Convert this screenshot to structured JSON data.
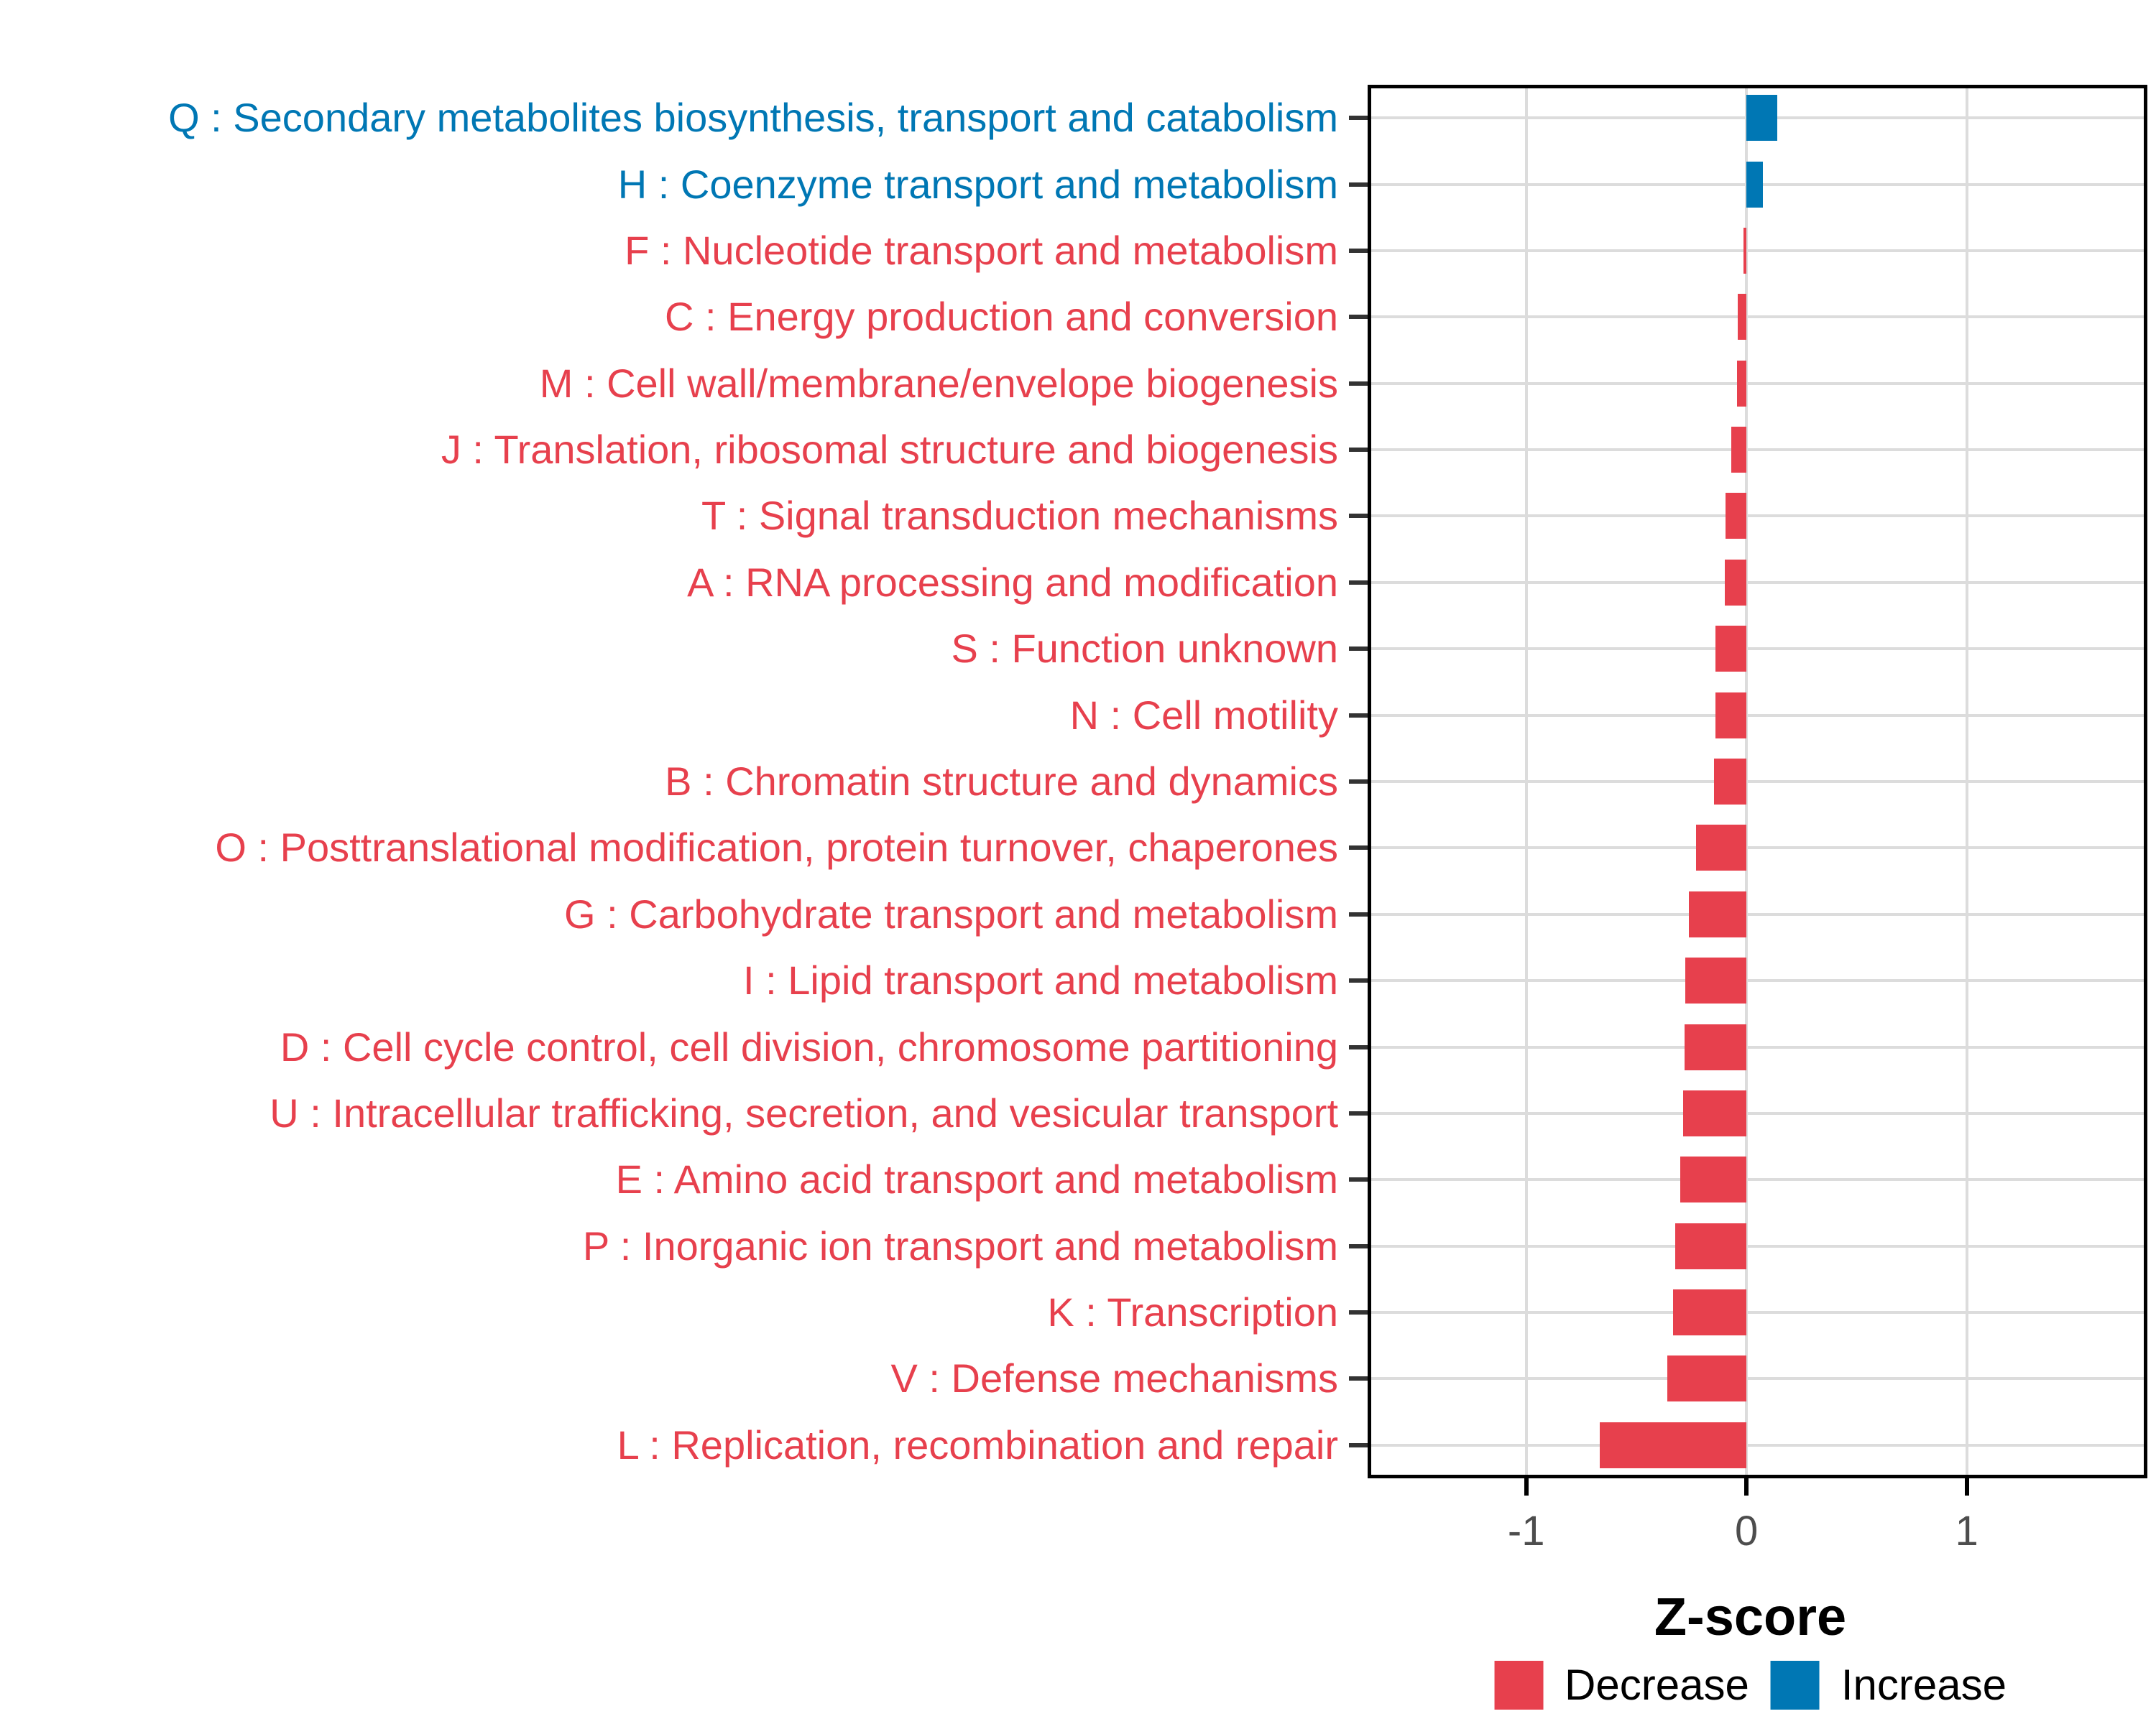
{
  "chart_data": {
    "type": "bar",
    "orientation": "horizontal",
    "title": "",
    "xlabel": "Z-score",
    "ylabel": "",
    "xlim": [
      -1.72,
      1.82
    ],
    "x_ticks": [
      -1,
      0,
      1
    ],
    "x_tick_labels": [
      "-1",
      "0",
      "1"
    ],
    "grid": "major-x and category-y, light gray",
    "legend_position": "bottom",
    "legend": [
      {
        "label": "Decrease",
        "color": "#E7404D"
      },
      {
        "label": "Increase",
        "color": "#0077B4"
      }
    ],
    "bars": [
      {
        "label": "Q : Secondary metabolites biosynthesis, transport and catabolism",
        "value": 0.14,
        "group": "Increase"
      },
      {
        "label": "H : Coenzyme transport and metabolism",
        "value": 0.075,
        "group": "Increase"
      },
      {
        "label": "F : Nucleotide transport and metabolism",
        "value": -0.015,
        "group": "Decrease"
      },
      {
        "label": "C : Energy production and conversion",
        "value": -0.039,
        "group": "Decrease"
      },
      {
        "label": "M : Cell wall/membrane/envelope biogenesis",
        "value": -0.044,
        "group": "Decrease"
      },
      {
        "label": "J : Translation, ribosomal structure and biogenesis",
        "value": -0.069,
        "group": "Decrease"
      },
      {
        "label": "T : Signal transduction mechanisms",
        "value": -0.094,
        "group": "Decrease"
      },
      {
        "label": "A : RNA processing and modification",
        "value": -0.098,
        "group": "Decrease"
      },
      {
        "label": "S : Function unknown",
        "value": -0.14,
        "group": "Decrease"
      },
      {
        "label": "N : Cell motility",
        "value": -0.142,
        "group": "Decrease"
      },
      {
        "label": "B : Chromatin structure and dynamics",
        "value": -0.146,
        "group": "Decrease"
      },
      {
        "label": "O : Posttranslational modification, protein turnover, chaperones",
        "value": -0.23,
        "group": "Decrease"
      },
      {
        "label": "G : Carbohydrate transport and metabolism",
        "value": -0.263,
        "group": "Decrease"
      },
      {
        "label": "I : Lipid transport and metabolism",
        "value": -0.278,
        "group": "Decrease"
      },
      {
        "label": "D : Cell cycle control, cell division, chromosome partitioning",
        "value": -0.28,
        "group": "Decrease"
      },
      {
        "label": "U : Intracellular trafficking, secretion, and vesicular transport",
        "value": -0.287,
        "group": "Decrease"
      },
      {
        "label": "E : Amino acid transport and metabolism",
        "value": -0.301,
        "group": "Decrease"
      },
      {
        "label": "P : Inorganic ion transport and metabolism",
        "value": -0.323,
        "group": "Decrease"
      },
      {
        "label": "K : Transcription",
        "value": -0.332,
        "group": "Decrease"
      },
      {
        "label": "V : Defense mechanisms",
        "value": -0.36,
        "group": "Decrease"
      },
      {
        "label": "L : Replication, recombination and repair",
        "value": -0.666,
        "group": "Decrease"
      }
    ]
  },
  "colors": {
    "decrease": "#E7404D",
    "increase": "#0077B4",
    "gridline": "#dcdcdc",
    "axis_text": "#4d4d4d",
    "axis_line": "#000000",
    "background": "#ffffff"
  }
}
